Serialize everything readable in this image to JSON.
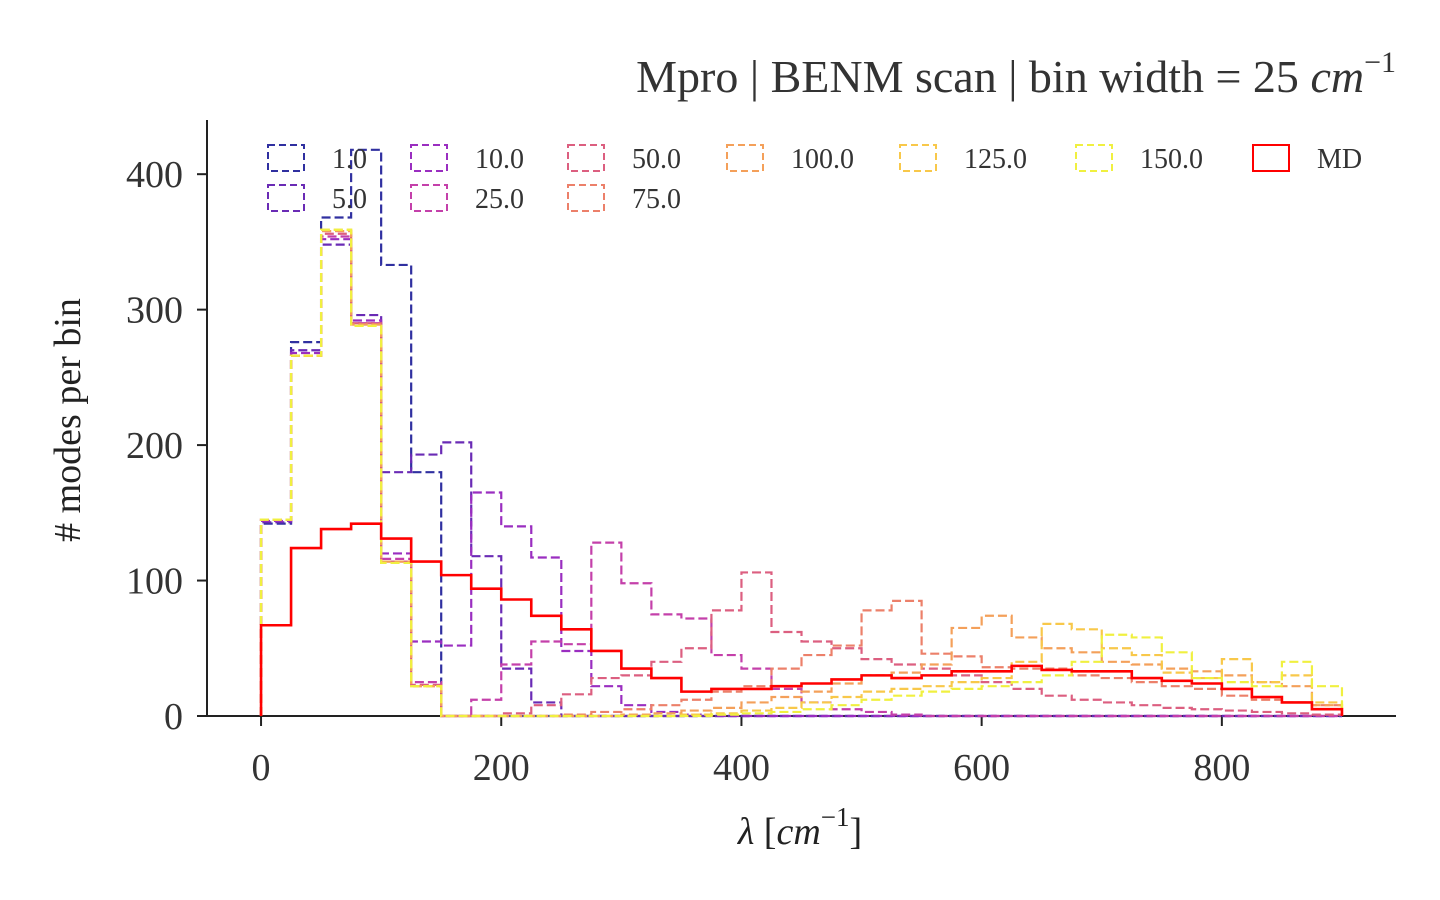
{
  "chart_data": {
    "type": "histogram-step",
    "title_parts": {
      "text": "Mpro | BENM scan | bin width = 25 ",
      "unit": "cm",
      "exp": "−1"
    },
    "xlabel_parts": {
      "symbol": "λ",
      "open": " [",
      "unit": "cm",
      "exp": "−1",
      "close": "]"
    },
    "ylabel": "# modes per bin",
    "xlim": [
      -45,
      945
    ],
    "ylim": [
      0,
      440
    ],
    "xticks": [
      0,
      200,
      400,
      600,
      800
    ],
    "yticks": [
      0,
      100,
      200,
      300,
      400
    ],
    "bin_edges": [
      0,
      25,
      50,
      75,
      100,
      125,
      150,
      175,
      200,
      225,
      250,
      275,
      300,
      325,
      350,
      375,
      400,
      425,
      450,
      475,
      500,
      525,
      550,
      575,
      600,
      625,
      650,
      675,
      700,
      725,
      750,
      775,
      800,
      825,
      850,
      875,
      900
    ],
    "legend": {
      "location": "top",
      "columns": 7
    },
    "series": [
      {
        "name": "1.0",
        "color": "#3030a0",
        "dashed": true,
        "values": [
          142,
          276,
          368,
          418,
          333,
          180,
          0,
          0,
          0,
          0,
          0,
          0,
          0,
          0,
          0,
          0,
          0,
          0,
          0,
          0,
          0,
          0,
          0,
          0,
          0,
          0,
          0,
          0,
          0,
          0,
          0,
          0,
          0,
          0,
          0,
          0
        ]
      },
      {
        "name": "5.0",
        "color": "#6a2bb5",
        "dashed": true,
        "values": [
          143,
          270,
          348,
          296,
          180,
          193,
          202,
          118,
          35,
          10,
          0,
          0,
          0,
          0,
          0,
          0,
          0,
          0,
          0,
          0,
          0,
          0,
          0,
          0,
          0,
          0,
          0,
          0,
          0,
          0,
          0,
          0,
          0,
          0,
          0,
          0
        ]
      },
      {
        "name": "10.0",
        "color": "#9a2ec0",
        "dashed": true,
        "values": [
          144,
          268,
          352,
          292,
          120,
          55,
          52,
          165,
          140,
          117,
          48,
          22,
          8,
          3,
          1,
          0,
          0,
          0,
          0,
          0,
          0,
          0,
          0,
          0,
          0,
          0,
          0,
          0,
          0,
          0,
          0,
          0,
          0,
          0,
          0,
          0
        ]
      },
      {
        "name": "25.0",
        "color": "#c440aa",
        "dashed": true,
        "values": [
          145,
          266,
          354,
          290,
          116,
          25,
          0,
          12,
          38,
          55,
          53,
          128,
          98,
          75,
          72,
          45,
          35,
          20,
          10,
          5,
          3,
          1,
          0,
          0,
          0,
          0,
          0,
          0,
          0,
          0,
          0,
          0,
          0,
          0,
          0,
          0
        ]
      },
      {
        "name": "50.0",
        "color": "#dc5f80",
        "dashed": true,
        "values": [
          145,
          266,
          356,
          290,
          114,
          23,
          0,
          0,
          2,
          8,
          16,
          28,
          30,
          40,
          50,
          78,
          106,
          62,
          55,
          50,
          42,
          38,
          35,
          30,
          25,
          20,
          15,
          12,
          10,
          8,
          6,
          5,
          4,
          3,
          2,
          1
        ]
      },
      {
        "name": "75.0",
        "color": "#ec806a",
        "dashed": true,
        "values": [
          145,
          266,
          358,
          289,
          114,
          22,
          0,
          0,
          0,
          0,
          1,
          3,
          5,
          8,
          12,
          18,
          22,
          35,
          45,
          52,
          78,
          85,
          46,
          44,
          36,
          35,
          35,
          30,
          28,
          25,
          22,
          20,
          15,
          12,
          10,
          8
        ]
      },
      {
        "name": "100.0",
        "color": "#f4a05a",
        "dashed": true,
        "values": [
          145,
          266,
          358,
          289,
          114,
          22,
          0,
          0,
          0,
          0,
          0,
          0,
          1,
          2,
          4,
          6,
          10,
          14,
          18,
          24,
          30,
          32,
          38,
          65,
          74,
          58,
          50,
          47,
          40,
          38,
          35,
          33,
          30,
          25,
          22,
          8
        ]
      },
      {
        "name": "125.0",
        "color": "#f8c84a",
        "dashed": true,
        "values": [
          145,
          266,
          359,
          288,
          113,
          22,
          0,
          0,
          0,
          0,
          0,
          0,
          0,
          0,
          1,
          2,
          4,
          6,
          10,
          14,
          18,
          20,
          22,
          25,
          28,
          40,
          68,
          64,
          50,
          45,
          32,
          28,
          42,
          25,
          30,
          10
        ]
      },
      {
        "name": "150.0",
        "color": "#f0f040",
        "dashed": true,
        "values": [
          145,
          266,
          359,
          288,
          113,
          22,
          0,
          0,
          0,
          0,
          0,
          0,
          0,
          0,
          0,
          1,
          2,
          3,
          5,
          8,
          12,
          15,
          18,
          20,
          22,
          25,
          30,
          40,
          60,
          58,
          47,
          28,
          25,
          22,
          40,
          22
        ]
      },
      {
        "name": "MD",
        "color": "#ff0000",
        "dashed": false,
        "values": [
          67,
          124,
          138,
          142,
          131,
          114,
          104,
          94,
          86,
          74,
          64,
          48,
          35,
          28,
          18,
          20,
          20,
          22,
          24,
          27,
          30,
          28,
          30,
          33,
          33,
          37,
          34,
          33,
          33,
          28,
          26,
          24,
          20,
          14,
          10,
          5
        ]
      }
    ]
  }
}
